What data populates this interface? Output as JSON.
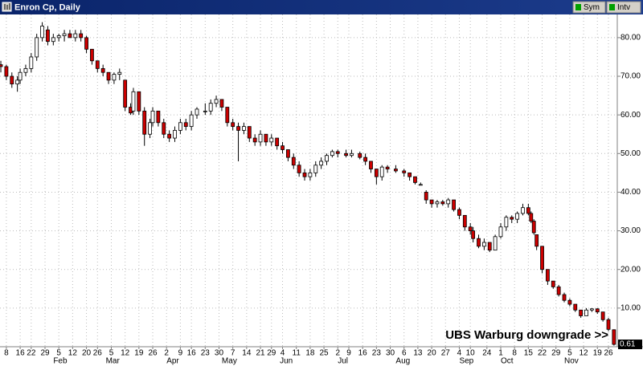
{
  "window": {
    "title": "Enron Cp, Daily",
    "buttons": [
      "Sym",
      "Intv"
    ]
  },
  "chart_data": {
    "type": "candlestick",
    "annotation": "UBS Warburg downgrade >>",
    "up_color": "#ffffff",
    "down_color": "#cc0000",
    "grid": true,
    "xlim": [
      -2.3,
      221.2
    ],
    "ylim": [
      0,
      86
    ],
    "yticks": [
      {
        "value": 10,
        "label": "10.00"
      },
      {
        "value": 20,
        "label": "20.00"
      },
      {
        "value": 30,
        "label": "30.00"
      },
      {
        "value": 40,
        "label": "40.00"
      },
      {
        "value": 50,
        "label": "50.00"
      },
      {
        "value": 60,
        "label": "60.00"
      },
      {
        "value": 70,
        "label": "70.00"
      },
      {
        "value": 80,
        "label": "80.00"
      }
    ],
    "xticks": [
      {
        "value": 0,
        "label": "8"
      },
      {
        "value": 5,
        "label": "16"
      },
      {
        "value": 9,
        "label": "22"
      },
      {
        "value": 14,
        "label": "29"
      },
      {
        "value": 19,
        "label": "5"
      },
      {
        "value": 24,
        "label": "12"
      },
      {
        "value": 29,
        "label": "20"
      },
      {
        "value": 33,
        "label": "26"
      },
      {
        "value": 38,
        "label": "5"
      },
      {
        "value": 43,
        "label": "12"
      },
      {
        "value": 48,
        "label": "19"
      },
      {
        "value": 53,
        "label": "26"
      },
      {
        "value": 58,
        "label": "2"
      },
      {
        "value": 63,
        "label": "9"
      },
      {
        "value": 67,
        "label": "16"
      },
      {
        "value": 72,
        "label": "23"
      },
      {
        "value": 77,
        "label": "30"
      },
      {
        "value": 82,
        "label": "7"
      },
      {
        "value": 87,
        "label": "14"
      },
      {
        "value": 92,
        "label": "21"
      },
      {
        "value": 96,
        "label": "29"
      },
      {
        "value": 100,
        "label": "4"
      },
      {
        "value": 105,
        "label": "11"
      },
      {
        "value": 110,
        "label": "18"
      },
      {
        "value": 115,
        "label": "25"
      },
      {
        "value": 120,
        "label": "2"
      },
      {
        "value": 124,
        "label": "9"
      },
      {
        "value": 129,
        "label": "16"
      },
      {
        "value": 134,
        "label": "23"
      },
      {
        "value": 139,
        "label": "30"
      },
      {
        "value": 144,
        "label": "6"
      },
      {
        "value": 149,
        "label": "13"
      },
      {
        "value": 154,
        "label": "20"
      },
      {
        "value": 159,
        "label": "27"
      },
      {
        "value": 164,
        "label": "4"
      },
      {
        "value": 168,
        "label": "10"
      },
      {
        "value": 174,
        "label": "24"
      },
      {
        "value": 179,
        "label": "1"
      },
      {
        "value": 184,
        "label": "8"
      },
      {
        "value": 189,
        "label": "15"
      },
      {
        "value": 194,
        "label": "22"
      },
      {
        "value": 199,
        "label": "29"
      },
      {
        "value": 204,
        "label": "5"
      },
      {
        "value": 209,
        "label": "12"
      },
      {
        "value": 214,
        "label": "19"
      },
      {
        "value": 218,
        "label": "26"
      }
    ],
    "month_labels": [
      {
        "value": 17,
        "label": "Feb"
      },
      {
        "value": 36,
        "label": "Mar"
      },
      {
        "value": 58,
        "label": "Apr"
      },
      {
        "value": 78,
        "label": "May"
      },
      {
        "value": 99,
        "label": "Jun"
      },
      {
        "value": 120,
        "label": "Jul"
      },
      {
        "value": 141,
        "label": "Aug"
      },
      {
        "value": 164,
        "label": "Sep"
      },
      {
        "value": 179,
        "label": "Oct"
      },
      {
        "value": 202,
        "label": "Nov"
      }
    ],
    "x": [
      -2,
      0,
      2,
      4,
      5,
      7,
      9,
      11,
      13,
      15,
      17,
      19,
      21,
      23,
      25,
      27,
      29,
      31,
      33,
      35,
      37,
      39,
      41,
      43,
      45,
      46,
      48,
      50,
      52,
      53,
      55,
      57,
      59,
      61,
      63,
      65,
      67,
      69,
      72,
      74,
      76,
      78,
      80,
      82,
      84,
      86,
      88,
      90,
      92,
      94,
      96,
      98,
      100,
      102,
      104,
      106,
      108,
      110,
      112,
      114,
      116,
      118,
      120,
      123,
      125,
      128,
      130,
      132,
      134,
      136,
      138,
      141,
      144,
      146,
      148,
      150,
      152,
      154,
      156,
      158,
      160,
      162,
      164,
      166,
      168,
      169,
      171,
      173,
      175,
      177,
      179,
      181,
      183,
      185,
      187,
      189,
      190,
      191,
      192,
      194,
      196,
      198,
      200,
      202,
      204,
      206,
      208,
      210,
      212,
      214,
      216,
      218,
      220
    ],
    "open": [
      73,
      72.5,
      70,
      68,
      69,
      71,
      72,
      75,
      80,
      82,
      79,
      80,
      80.5,
      81,
      80,
      81,
      80,
      77,
      74,
      72,
      71,
      69,
      70.5,
      69,
      62,
      61,
      66,
      61,
      55,
      58,
      61,
      58,
      55,
      54,
      56,
      58,
      57,
      60,
      61,
      61,
      63,
      64,
      62,
      58,
      57,
      56,
      57,
      54,
      53,
      55,
      53,
      54,
      52,
      51,
      49,
      47,
      45,
      44,
      45,
      47,
      48,
      49.5,
      50.5,
      50,
      49.5,
      50,
      49,
      48,
      46,
      44,
      46.5,
      46,
      45.5,
      45,
      44,
      42,
      40,
      38,
      37,
      37.5,
      37,
      38,
      35.5,
      34,
      31,
      30,
      28,
      26,
      27,
      25,
      28.5,
      31,
      33.5,
      33,
      34.5,
      36,
      34.5,
      32.5,
      29,
      26,
      20,
      17,
      15.5,
      13.5,
      12,
      11,
      9.5,
      8,
      9.5,
      9.8,
      9,
      7,
      4.4
    ],
    "high": [
      74,
      73,
      71,
      70,
      72,
      73,
      76,
      81,
      84,
      83,
      81,
      81,
      82,
      82,
      82,
      82,
      80.5,
      77,
      74,
      73,
      71,
      71,
      72,
      69,
      63,
      67,
      66,
      62,
      59,
      62,
      61,
      59,
      56,
      57,
      59,
      59,
      61,
      62,
      63,
      64,
      65,
      64,
      62,
      59,
      58,
      58,
      57,
      55,
      56,
      55,
      55,
      54,
      53,
      51,
      50,
      48,
      46,
      46,
      48,
      49,
      50,
      51,
      51,
      51,
      51,
      50.5,
      50,
      48,
      46,
      47,
      47,
      47,
      46,
      45,
      44,
      42.5,
      40.5,
      38,
      38,
      38,
      38.5,
      38,
      36,
      34,
      32,
      31,
      29,
      28,
      27,
      29,
      32,
      34,
      34,
      35,
      37,
      37,
      35,
      33,
      29,
      26,
      20,
      17,
      16,
      14,
      12.5,
      11,
      9.5,
      10,
      10,
      10,
      9,
      7.5,
      4.5
    ],
    "low": [
      71,
      69,
      67,
      66,
      68,
      70,
      71,
      74,
      79,
      78,
      78,
      79,
      79,
      80,
      79,
      79,
      76,
      73,
      71,
      70,
      68,
      68,
      69,
      61,
      60,
      60,
      60,
      52,
      54,
      57,
      57,
      54,
      53,
      53,
      55,
      56,
      56,
      59,
      60,
      60,
      62,
      61,
      57,
      56,
      48,
      55,
      53,
      52,
      52,
      52,
      52,
      51,
      50,
      48,
      46,
      44,
      43,
      43,
      44,
      46,
      47,
      49,
      49,
      49,
      49,
      48.5,
      47,
      45,
      42,
      43,
      45,
      45,
      44,
      43,
      42,
      42,
      37,
      36,
      36,
      36.5,
      36,
      35,
      33,
      30,
      29,
      27,
      25.5,
      25,
      24.5,
      25,
      28,
      30,
      32,
      32,
      34,
      34,
      32,
      29,
      25,
      19,
      16,
      15,
      13,
      11.5,
      10.5,
      9,
      7.5,
      8,
      9,
      8.5,
      6.5,
      4,
      0.3
    ],
    "close": [
      72.5,
      70,
      68,
      69,
      71,
      72,
      75,
      80,
      83,
      79,
      80,
      80.5,
      81,
      80,
      81,
      80,
      77,
      74,
      72,
      71,
      69,
      70.5,
      71,
      62,
      60.5,
      66,
      61,
      55,
      58,
      61,
      58,
      55,
      54,
      56,
      58,
      57,
      60,
      61.5,
      61,
      63,
      64,
      62,
      58,
      57,
      56,
      57,
      54,
      53,
      55,
      53,
      54,
      52,
      51,
      49,
      47,
      45,
      44,
      45,
      47,
      48,
      49.5,
      50.5,
      50,
      49.5,
      50,
      49,
      48,
      46,
      44,
      46.5,
      46,
      45.5,
      45,
      44,
      42.5,
      42,
      38,
      37,
      37.5,
      37,
      38,
      35.5,
      34,
      31,
      30,
      28,
      26,
      27,
      25,
      28.5,
      31,
      33.5,
      33,
      34.5,
      36,
      34.5,
      32.5,
      29.5,
      26,
      20,
      17,
      15.5,
      13.5,
      12,
      11,
      9.5,
      8,
      9.5,
      9.8,
      9,
      7,
      4.5,
      0.61
    ]
  }
}
